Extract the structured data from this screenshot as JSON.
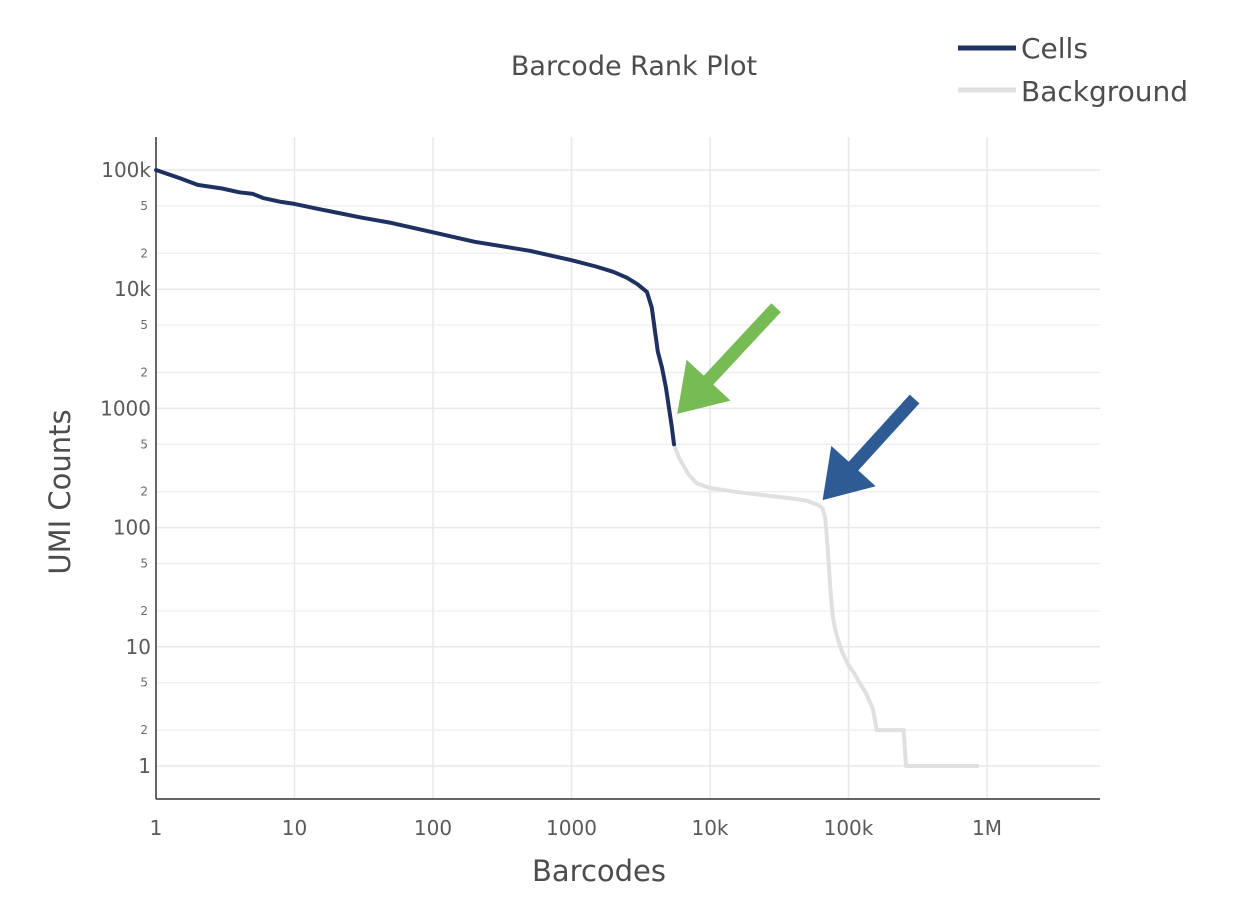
{
  "chart_data": {
    "type": "line",
    "title": "Barcode Rank Plot",
    "xlabel": "Barcodes",
    "ylabel": "UMI Counts",
    "x_scale": "log",
    "y_scale": "log",
    "xlim": [
      1,
      5000000
    ],
    "ylim": [
      0.5,
      200000
    ],
    "grid": true,
    "legend_position": "top-right",
    "x_ticks": [
      {
        "value": 1,
        "label": "1"
      },
      {
        "value": 10,
        "label": "10"
      },
      {
        "value": 100,
        "label": "100"
      },
      {
        "value": 1000,
        "label": "1000"
      },
      {
        "value": 10000,
        "label": "10k"
      },
      {
        "value": 100000,
        "label": "100k"
      },
      {
        "value": 1000000,
        "label": "1M"
      }
    ],
    "y_major_ticks": [
      {
        "value": 100000,
        "label": "100k"
      },
      {
        "value": 10000,
        "label": "10k"
      },
      {
        "value": 1000,
        "label": "1000"
      },
      {
        "value": 100,
        "label": "100"
      },
      {
        "value": 10,
        "label": "10"
      },
      {
        "value": 1,
        "label": "1"
      }
    ],
    "y_minor_ticks": [
      {
        "value": 50000,
        "label": "5"
      },
      {
        "value": 20000,
        "label": "2"
      },
      {
        "value": 5000,
        "label": "5"
      },
      {
        "value": 2000,
        "label": "2"
      },
      {
        "value": 500,
        "label": "5"
      },
      {
        "value": 200,
        "label": "2"
      },
      {
        "value": 50,
        "label": "5"
      },
      {
        "value": 20,
        "label": "2"
      },
      {
        "value": 5,
        "label": "5"
      },
      {
        "value": 2,
        "label": "2"
      }
    ],
    "series": [
      {
        "name": "Cells",
        "color": "#1e3160",
        "points": [
          [
            1,
            100000
          ],
          [
            1.5,
            85000
          ],
          [
            2,
            75000
          ],
          [
            3,
            70000
          ],
          [
            4,
            65000
          ],
          [
            5,
            63000
          ],
          [
            6,
            58000
          ],
          [
            8,
            54000
          ],
          [
            10,
            52000
          ],
          [
            15,
            47000
          ],
          [
            20,
            44000
          ],
          [
            30,
            40000
          ],
          [
            50,
            36000
          ],
          [
            100,
            30000
          ],
          [
            200,
            25000
          ],
          [
            500,
            21000
          ],
          [
            1000,
            17500
          ],
          [
            1500,
            15500
          ],
          [
            2000,
            14000
          ],
          [
            2500,
            12500
          ],
          [
            3000,
            11000
          ],
          [
            3500,
            9500
          ],
          [
            3800,
            7000
          ],
          [
            4000,
            4500
          ],
          [
            4200,
            3000
          ],
          [
            4500,
            2200
          ],
          [
            4800,
            1500
          ],
          [
            5000,
            1100
          ],
          [
            5300,
            700
          ],
          [
            5500,
            500
          ]
        ]
      },
      {
        "name": "Background",
        "color": "#e0e0e0",
        "points": [
          [
            5500,
            500
          ],
          [
            6000,
            380
          ],
          [
            7000,
            280
          ],
          [
            8000,
            235
          ],
          [
            10000,
            215
          ],
          [
            15000,
            200
          ],
          [
            20000,
            192
          ],
          [
            30000,
            182
          ],
          [
            40000,
            175
          ],
          [
            50000,
            168
          ],
          [
            60000,
            155
          ],
          [
            65000,
            145
          ],
          [
            68000,
            120
          ],
          [
            70000,
            80
          ],
          [
            72000,
            50
          ],
          [
            74000,
            30
          ],
          [
            77000,
            18
          ],
          [
            80000,
            14
          ],
          [
            85000,
            11
          ],
          [
            90000,
            9
          ],
          [
            100000,
            7
          ],
          [
            110000,
            6
          ],
          [
            120000,
            5
          ],
          [
            135000,
            4
          ],
          [
            150000,
            3
          ],
          [
            160000,
            2
          ],
          [
            250000,
            2
          ],
          [
            260000,
            1
          ],
          [
            850000,
            1
          ]
        ]
      }
    ],
    "annotations": [
      {
        "type": "arrow",
        "color": "#77bb55",
        "from": [
          30000,
          7000
        ],
        "to": [
          5800,
          900
        ]
      },
      {
        "type": "arrow",
        "color": "#2f5b95",
        "from": [
          300000,
          1200
        ],
        "to": [
          65000,
          170
        ]
      }
    ]
  }
}
